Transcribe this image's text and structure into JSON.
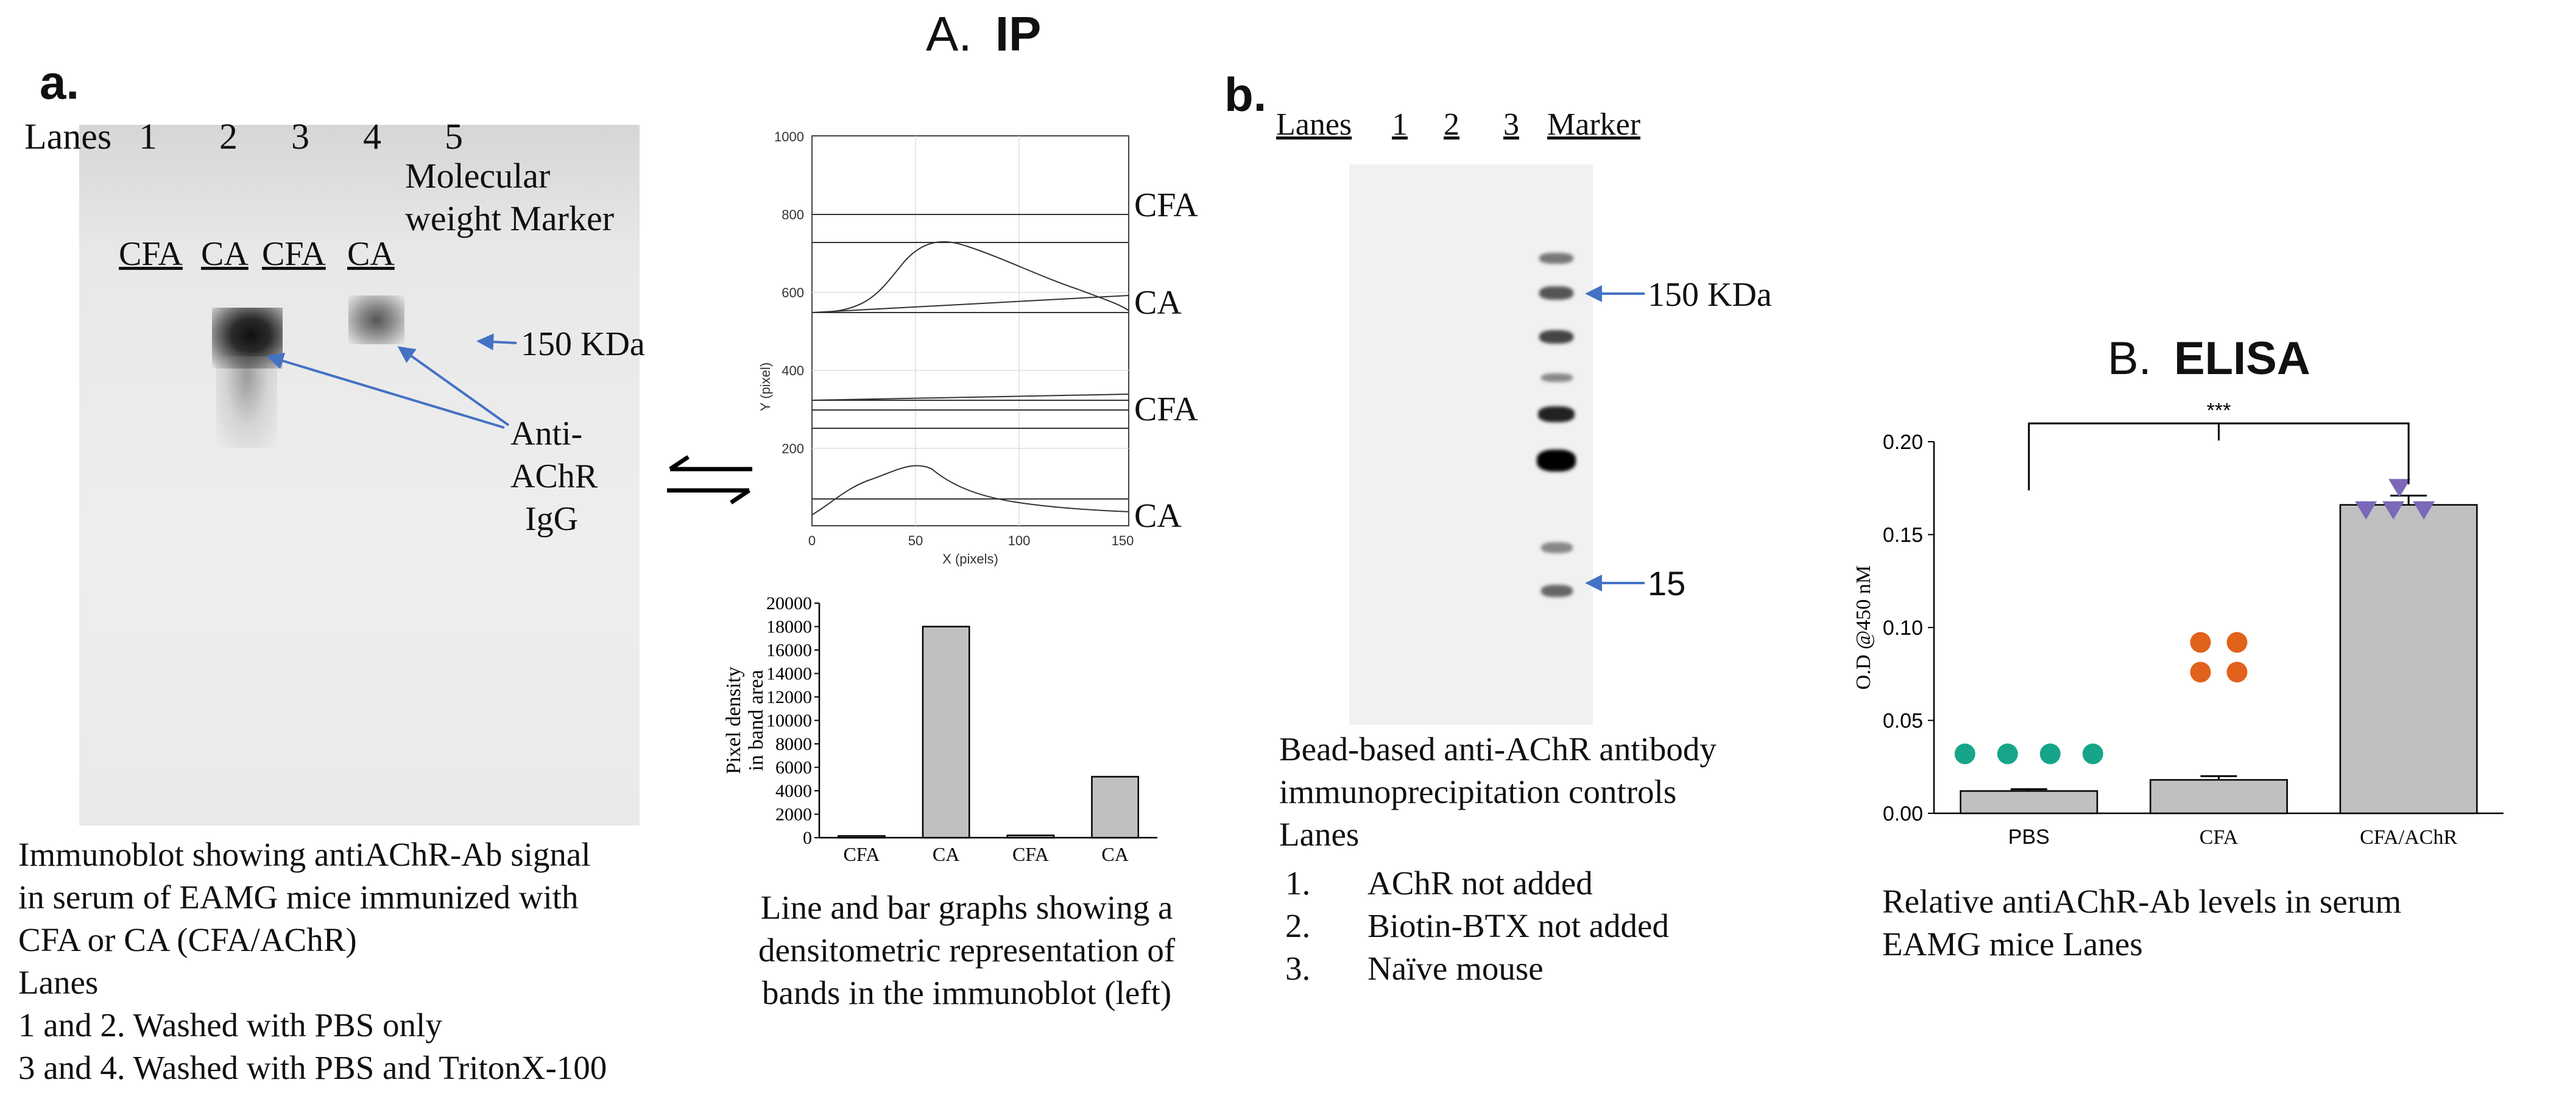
{
  "figure": {
    "section_A_title": {
      "letter": "A.",
      "label": "IP"
    },
    "section_B_title": {
      "letter": "B.",
      "label": "ELISA"
    }
  },
  "panel_a": {
    "letter": "a.",
    "lanes_label": "Lanes",
    "lane_numbers": [
      "1",
      "2",
      "3",
      "4",
      "5"
    ],
    "marker_label": [
      "Molecular",
      "weight Marker"
    ],
    "sample_labels": [
      "CFA",
      "CA",
      "CFA",
      "CA"
    ],
    "mw_label": "150 KDa",
    "antibody_label": [
      "Anti-",
      "AChR",
      "IgG"
    ],
    "caption": [
      "Immunoblot showing antiAChR-Ab signal",
      "in serum of EAMG mice immunized with",
      "CFA or CA (CFA/AChR)",
      "Lanes",
      "1 and 2. Washed with PBS only",
      "3 and 4. Washed with PBS and TritonX-100"
    ]
  },
  "densitometry": {
    "line_plot": {
      "ylabel": "Y (pixel)",
      "xlabel": "X (pixels)",
      "y_ticks": [
        "1000",
        "800",
        "600",
        "400",
        "200"
      ],
      "x_ticks": [
        "0",
        "50",
        "100",
        "150"
      ],
      "track_labels": [
        "CFA",
        "CA",
        "CFA",
        "CA"
      ]
    },
    "caption": [
      "Line and bar graphs showing a",
      "densitometric representation of",
      "bands in the immunoblot (left)"
    ]
  },
  "panel_b": {
    "letter": "b.",
    "lanes_label": "Lanes",
    "lane_numbers": [
      "1",
      "2",
      "3"
    ],
    "marker_label": "Marker",
    "mw_labels": [
      "150 KDa",
      "15"
    ],
    "caption": [
      "Bead-based anti-AChR antibody",
      "immunoprecipitation controls",
      "Lanes"
    ],
    "lanes_list": [
      {
        "num": "1.",
        "text": "AChR not added"
      },
      {
        "num": "2.",
        "text": "Biotin-BTX not added"
      },
      {
        "num": "3.",
        "text": "Naïve mouse"
      }
    ]
  },
  "elisa": {
    "significance": "***",
    "caption": [
      "Relative antiAChR-Ab levels in serum",
      "EAMG mice Lanes"
    ]
  },
  "colors": {
    "bar_fill": "#c0c0c0",
    "pbs_points": "#17a589",
    "cfa_points": "#e0621b",
    "cfa_achr_points": "#7b68b8",
    "arrow": "#4472c4"
  },
  "chart_data": [
    {
      "type": "bar",
      "categories": [
        "CFA",
        "CA",
        "CFA",
        "CA"
      ],
      "values": [
        150,
        18000,
        200,
        5200
      ],
      "title": "",
      "xlabel": "",
      "ylabel": "Pixel density in band area",
      "ylabel_lines": [
        "Pixel density",
        "in band area"
      ],
      "ylim": [
        0,
        20000
      ],
      "yticks": [
        0,
        2000,
        4000,
        6000,
        8000,
        10000,
        12000,
        14000,
        16000,
        18000,
        20000
      ],
      "grid": false
    },
    {
      "type": "bar",
      "categories": [
        "PBS",
        "CFA",
        "CFA/AChR"
      ],
      "values": [
        0.012,
        0.018,
        0.166
      ],
      "errors": [
        0.001,
        0.002,
        0.005
      ],
      "points": [
        [
          0.032,
          0.032,
          0.032,
          0.032
        ],
        [
          0.076,
          0.076,
          0.092,
          0.092
        ],
        [
          0.163,
          0.163,
          0.163,
          0.175
        ]
      ],
      "title": "",
      "xlabel": "",
      "ylabel": "O.D @450 nM",
      "ylim": [
        0,
        0.2
      ],
      "yticks": [
        "0.00",
        "0.05",
        "0.10",
        "0.15",
        "0.20"
      ],
      "grid": false
    }
  ]
}
